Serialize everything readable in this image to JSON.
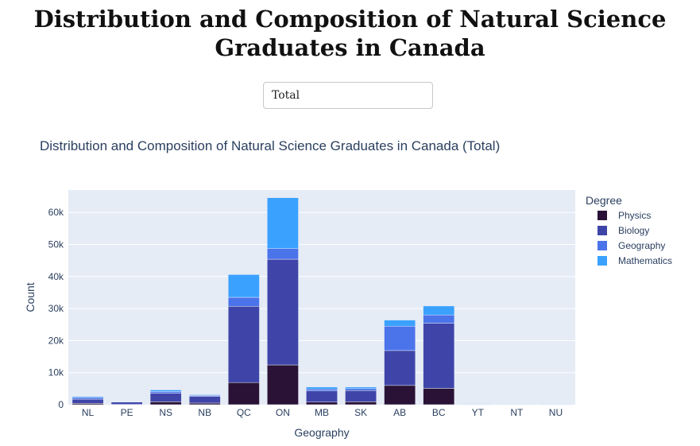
{
  "page": {
    "title": "Distribution and Composition of Natural Science Graduates in Canada"
  },
  "dropdown": {
    "selected": "Total"
  },
  "chart_data": {
    "type": "bar",
    "barmode": "stack",
    "title": "Distribution and Composition of Natural Science Graduates in Canada (Total)",
    "xlabel": "Geography",
    "ylabel": "Count",
    "ylim": [
      0,
      67000
    ],
    "yticks": [
      0,
      10000,
      20000,
      30000,
      40000,
      50000,
      60000
    ],
    "ytick_labels": [
      "0",
      "10k",
      "20k",
      "30k",
      "40k",
      "50k",
      "60k"
    ],
    "grid": true,
    "legend_title": "Degree",
    "legend_position": "top-right",
    "categories": [
      "NL",
      "PE",
      "NS",
      "NB",
      "QC",
      "ON",
      "MB",
      "SK",
      "AB",
      "BC",
      "YT",
      "NT",
      "NU"
    ],
    "series": [
      {
        "name": "Physics",
        "color": "#2a1237",
        "values": [
          400,
          100,
          900,
          500,
          6900,
          12400,
          800,
          900,
          6000,
          5100,
          30,
          50,
          20
        ]
      },
      {
        "name": "Biology",
        "color": "#3f45a8",
        "values": [
          1300,
          700,
          2700,
          2100,
          23800,
          33000,
          3500,
          3500,
          10900,
          20300,
          100,
          100,
          40
        ]
      },
      {
        "name": "Geography",
        "color": "#4b73ea",
        "values": [
          500,
          100,
          500,
          300,
          2800,
          3300,
          600,
          600,
          7600,
          2600,
          100,
          50,
          20
        ]
      },
      {
        "name": "Mathematics",
        "color": "#3aa1ff",
        "values": [
          300,
          100,
          500,
          200,
          7100,
          15900,
          600,
          500,
          1900,
          2800,
          50,
          50,
          20
        ]
      }
    ]
  }
}
